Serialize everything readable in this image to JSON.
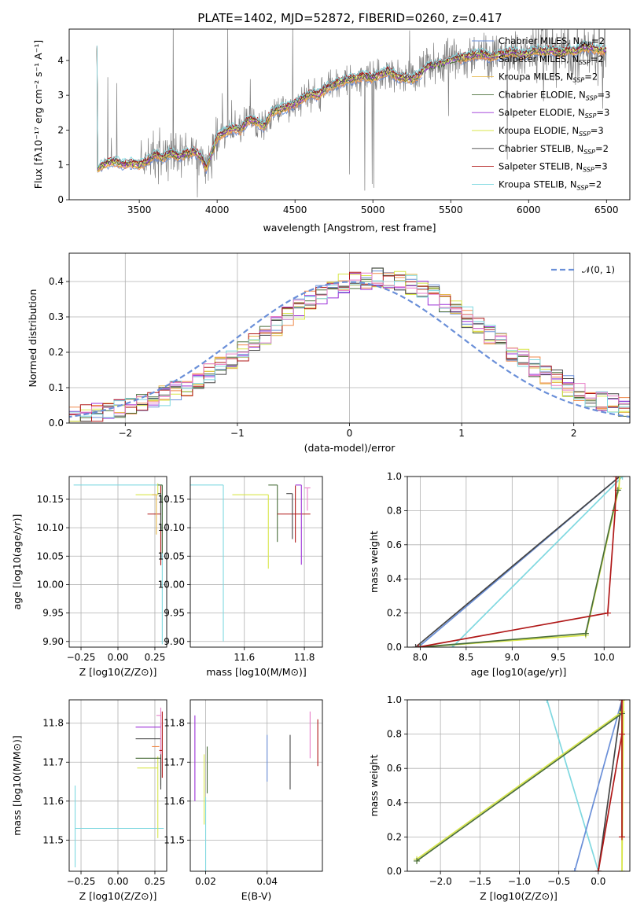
{
  "figure": {
    "title": "PLATE=1402, MJD=52872, FIBERID=0260, z=0.417"
  },
  "colors": {
    "data": "#808080",
    "Chabrier MILES": "#6a8fd8",
    "Salpeter MILES": "#f08a4b",
    "Kroupa MILES": "#e6b84c",
    "Chabrier ELODIE": "#4a6e3a",
    "Salpeter ELODIE": "#9b30d8",
    "Kroupa ELODIE": "#d8e64a",
    "Chabrier STELIB": "#444444",
    "Salpeter STELIB": "#b01818",
    "Kroupa STELIB": "#7fd8e0",
    "pink": "#e87fc8"
  },
  "chart_data": [
    {
      "id": "spectrum",
      "type": "line",
      "xlabel": "wavelength [Angstrom, rest frame]",
      "ylabel": "Flux [f_λ10^{-17} erg cm^{-2} s^{-1} A^{-1}]",
      "xlim": [
        3050,
        6650
      ],
      "ylim": [
        0,
        4.9
      ],
      "xticks": [
        "3500",
        "4000",
        "4500",
        "5000",
        "5500",
        "6000",
        "6500"
      ],
      "yticks": [
        "0",
        "1",
        "2",
        "3",
        "4"
      ],
      "grid": false,
      "legend_placement": "upper-right",
      "legend": [
        {
          "name": "Chabrier MILES",
          "sub": "SSP",
          "n": "2"
        },
        {
          "name": "Salpeter MILES",
          "sub": "SSP",
          "n": "2"
        },
        {
          "name": "Kroupa MILES",
          "sub": "SSP",
          "n": "2"
        },
        {
          "name": "Chabrier ELODIE",
          "sub": "SSP",
          "n": "3"
        },
        {
          "name": "Salpeter ELODIE",
          "sub": "SSP",
          "n": "3"
        },
        {
          "name": "Kroupa ELODIE",
          "sub": "SSP",
          "n": "3"
        },
        {
          "name": "Chabrier STELIB",
          "sub": "SSP",
          "n": "2"
        },
        {
          "name": "Salpeter STELIB",
          "sub": "SSP",
          "n": "3"
        },
        {
          "name": "Kroupa STELIB",
          "sub": "SSP",
          "n": "2"
        }
      ],
      "model_curve": {
        "x": [
          3230,
          3260,
          3300,
          3350,
          3400,
          3450,
          3500,
          3550,
          3600,
          3650,
          3700,
          3750,
          3800,
          3850,
          3900,
          3930,
          3970,
          4000,
          4050,
          4100,
          4150,
          4200,
          4250,
          4300,
          4350,
          4400,
          4450,
          4500,
          4550,
          4600,
          4650,
          4700,
          4750,
          4800,
          4850,
          4900,
          4950,
          5000,
          5050,
          5100,
          5150,
          5200,
          5250,
          5300,
          5350,
          5400,
          5450,
          5500,
          5550,
          5600,
          5650,
          5700,
          5750,
          5800,
          5850,
          5900,
          5950,
          6000,
          6050,
          6100,
          6150,
          6200,
          6250,
          6300,
          6350,
          6400,
          6450,
          6500
        ],
        "y": [
          0.85,
          1.0,
          1.05,
          1.1,
          1.0,
          1.05,
          1.0,
          1.1,
          1.3,
          1.2,
          1.35,
          1.25,
          1.3,
          1.4,
          1.2,
          0.9,
          1.4,
          1.8,
          1.95,
          2.05,
          2.0,
          2.3,
          2.25,
          2.1,
          2.5,
          2.6,
          2.65,
          2.75,
          2.9,
          3.05,
          3.0,
          3.2,
          3.3,
          3.4,
          3.45,
          3.5,
          3.55,
          3.5,
          3.6,
          3.7,
          3.55,
          3.5,
          3.45,
          3.6,
          3.8,
          3.85,
          3.9,
          4.0,
          4.05,
          4.1,
          4.15,
          4.2,
          4.1,
          4.15,
          4.2,
          4.25,
          4.15,
          4.2,
          4.3,
          4.25,
          4.3,
          4.2,
          4.3,
          4.25,
          4.4,
          4.35,
          4.3,
          4.3
        ]
      }
    },
    {
      "id": "residuals",
      "type": "line",
      "xlabel": "(data-model)/error",
      "ylabel": "Normed distribution",
      "xlim": [
        -2.5,
        2.5
      ],
      "ylim": [
        0,
        0.48
      ],
      "xticks": [
        "−2",
        "−1",
        "0",
        "1",
        "2"
      ],
      "yticks": [
        "0.0",
        "0.1",
        "0.2",
        "0.3",
        "0.4"
      ],
      "grid": true,
      "legend_placement": "upper-right",
      "legend": [
        {
          "name": "𝒩(0, 1)"
        }
      ],
      "normal": {
        "mean": 0,
        "sigma": 1
      }
    },
    {
      "id": "age-vs-Z",
      "type": "scatter",
      "xlabel": "Z [log10(Z/Z⊙)]",
      "ylabel": "age  [log10(age/yr)]",
      "xlim": [
        -0.33,
        0.33
      ],
      "ylim": [
        9.89,
        10.19
      ],
      "xticks": [
        "−0.25",
        "0.00",
        "0.25"
      ],
      "yticks": [
        "9.90",
        "9.95",
        "10.00",
        "10.05",
        "10.10",
        "10.15"
      ],
      "grid": true,
      "points": [
        {
          "series": "Kroupa STELIB",
          "x": 0.3,
          "y": 10.175,
          "xerr": [
            0.6,
            0.0
          ],
          "yerr": [
            0.28,
            0.0
          ]
        },
        {
          "series": "Kroupa ELODIE",
          "x": 0.27,
          "y": 10.158,
          "xerr": [
            0.15,
            0.0
          ],
          "yerr": [
            0.0,
            0.02
          ]
        },
        {
          "series": "Chabrier ELODIE",
          "x": 0.3,
          "y": 10.175,
          "xerr": [
            0.03,
            0.0
          ],
          "yerr": [
            0.12,
            0.0
          ]
        },
        {
          "series": "Salpeter STELIB",
          "x": 0.29,
          "y": 10.124,
          "xerr": [
            0.09,
            0.0
          ],
          "yerr": [
            0.09,
            0.05
          ]
        },
        {
          "series": "Kroupa MILES",
          "x": 0.26,
          "y": 10.158,
          "xerr": [
            0.03,
            0.0
          ],
          "yerr": [
            0.07,
            0.0
          ]
        },
        {
          "series": "Chabrier STELIB",
          "x": 0.29,
          "y": 10.16,
          "xerr": [
            0.02,
            0.0
          ],
          "yerr": [
            0.06,
            0.0
          ]
        }
      ]
    },
    {
      "id": "age-vs-mass",
      "type": "scatter",
      "xlabel": "mass [log10(M/M⊙)]",
      "ylabel": "",
      "xlim": [
        11.42,
        11.86
      ],
      "ylim": [
        9.89,
        10.19
      ],
      "xticks": [
        "11.6",
        "11.8"
      ],
      "yticks": [
        "9.90",
        "9.95",
        "10.00",
        "10.05",
        "10.10",
        "10.15"
      ],
      "grid": true,
      "points": [
        {
          "series": "Kroupa STELIB",
          "x": 11.53,
          "y": 10.175,
          "xerr": [
            0.11,
            0.0
          ],
          "yerr": [
            0.275,
            0.0
          ]
        },
        {
          "series": "Kroupa ELODIE",
          "x": 11.68,
          "y": 10.158,
          "xerr": [
            0.12,
            0.0
          ],
          "yerr": [
            0.13,
            0.0
          ]
        },
        {
          "series": "Chabrier ELODIE",
          "x": 11.71,
          "y": 10.175,
          "xerr": [
            0.03,
            0.0
          ],
          "yerr": [
            0.1,
            0.0
          ]
        },
        {
          "series": "Salpeter STELIB",
          "x": 11.77,
          "y": 10.124,
          "xerr": [
            0.06,
            0.05
          ],
          "yerr": [
            0.05,
            0.05
          ]
        },
        {
          "series": "Salpeter ELODIE",
          "x": 11.79,
          "y": 10.175,
          "xerr": [
            0.02,
            0.0
          ],
          "yerr": [
            0.14,
            0.0
          ]
        },
        {
          "series": "Chabrier STELIB",
          "x": 11.76,
          "y": 10.16,
          "xerr": [
            0.02,
            0.0
          ],
          "yerr": [
            0.08,
            0.0
          ]
        },
        {
          "series": "pink",
          "x": 11.81,
          "y": 10.17,
          "xerr": [
            0.01,
            0.01
          ],
          "yerr": [
            0.04,
            0.0
          ]
        }
      ]
    },
    {
      "id": "massweight-vs-age",
      "type": "line",
      "xlabel": "age  [log10(age/yr)]",
      "ylabel": "mass weight",
      "xlim": [
        7.86,
        10.28
      ],
      "ylim": [
        0,
        1.0
      ],
      "xticks": [
        "8.0",
        "8.5",
        "9.0",
        "9.5",
        "10.0"
      ],
      "yticks": [
        "0.0",
        "0.2",
        "0.4",
        "0.6",
        "0.8",
        "1.0"
      ],
      "grid": true,
      "series": [
        {
          "name": "Chabrier MILES",
          "x": [
            7.98,
            10.17
          ],
          "y": [
            0.0,
            1.0
          ]
        },
        {
          "name": "Chabrier STELIB",
          "x": [
            7.95,
            10.17
          ],
          "y": [
            0.0,
            1.0
          ]
        },
        {
          "name": "Kroupa STELIB",
          "x": [
            8.35,
            10.2
          ],
          "y": [
            0.0,
            1.0
          ]
        },
        {
          "name": "Kroupa ELODIE",
          "x": [
            8.0,
            9.8,
            10.16,
            10.17
          ],
          "y": [
            0.0,
            0.07,
            0.93,
            1.0
          ]
        },
        {
          "name": "Chabrier ELODIE",
          "x": [
            8.0,
            9.8,
            10.15
          ],
          "y": [
            0.0,
            0.08,
            0.92
          ]
        },
        {
          "name": "Salpeter STELIB",
          "x": [
            7.98,
            10.04,
            10.12,
            10.13
          ],
          "y": [
            0.0,
            0.2,
            0.8,
            1.0
          ]
        }
      ]
    },
    {
      "id": "mass-vs-Z",
      "type": "scatter",
      "xlabel": "Z [log10(Z/Z⊙)]",
      "ylabel": "mass [log10(M/M⊙)]",
      "xlim": [
        -0.33,
        0.33
      ],
      "ylim": [
        11.42,
        11.86
      ],
      "xticks": [
        "−0.25",
        "0.00",
        "0.25"
      ],
      "yticks": [
        "11.5",
        "11.6",
        "11.7",
        "11.8"
      ],
      "grid": true,
      "points": [
        {
          "series": "Kroupa STELIB",
          "x": -0.29,
          "y": 11.53,
          "xerr": [
            0.0,
            0.6
          ],
          "yerr": [
            0.1,
            0.11
          ]
        },
        {
          "series": "Kroupa ELODIE",
          "x": 0.27,
          "y": 11.685,
          "xerr": [
            0.14,
            0.0
          ],
          "yerr": [
            0.18,
            0.03
          ]
        },
        {
          "series": "Chabrier ELODIE",
          "x": 0.29,
          "y": 11.71,
          "xerr": [
            0.17,
            0.0
          ],
          "yerr": [
            0.07,
            0.0
          ]
        },
        {
          "series": "Salpeter ELODIE",
          "x": 0.29,
          "y": 11.79,
          "xerr": [
            0.17,
            0.0
          ],
          "yerr": [
            0.0,
            0.01
          ]
        },
        {
          "series": "Chabrier STELIB",
          "x": 0.29,
          "y": 11.76,
          "xerr": [
            0.17,
            0.0
          ],
          "yerr": [
            0.13,
            0.0
          ]
        },
        {
          "series": "Salpeter MILES",
          "x": 0.28,
          "y": 11.74,
          "xerr": [
            0.05,
            0.0
          ],
          "yerr": [
            0.0,
            0.0
          ]
        },
        {
          "series": "pink",
          "x": 0.29,
          "y": 11.82,
          "xerr": [
            0.03,
            0.0
          ],
          "yerr": [
            0.1,
            0.02
          ]
        },
        {
          "series": "Salpeter STELIB",
          "x": 0.3,
          "y": 11.73,
          "xerr": [
            0.02,
            0.0
          ],
          "yerr": [
            0.07,
            0.1
          ]
        }
      ]
    },
    {
      "id": "mass-vs-ebv",
      "type": "scatter",
      "xlabel": "E(B-V)",
      "ylabel": "",
      "xlim": [
        0.015,
        0.058
      ],
      "ylim": [
        11.42,
        11.86
      ],
      "xticks": [
        "0.02",
        "0.04"
      ],
      "yticks": [
        "11.5",
        "11.6",
        "11.7",
        "11.8"
      ],
      "grid": true,
      "points": [
        {
          "series": "Salpeter ELODIE",
          "x": 0.0165,
          "y": 11.72,
          "yerr": [
            0.12,
            0.1
          ]
        },
        {
          "series": "Kroupa STELIB",
          "x": 0.02,
          "y": 11.53,
          "yerr": [
            0.11,
            0.08
          ]
        },
        {
          "series": "Kroupa ELODIE",
          "x": 0.0195,
          "y": 11.67,
          "yerr": [
            0.13,
            0.05
          ]
        },
        {
          "series": "Chabrier ELODIE",
          "x": 0.0205,
          "y": 11.71,
          "yerr": [
            0.09,
            0.03
          ]
        },
        {
          "series": "Chabrier MILES",
          "x": 0.04,
          "y": 11.71,
          "yerr": [
            0.06,
            0.06
          ]
        },
        {
          "series": "Chabrier STELIB",
          "x": 0.0475,
          "y": 11.7,
          "yerr": [
            0.07,
            0.07
          ]
        },
        {
          "series": "pink",
          "x": 0.054,
          "y": 11.76,
          "yerr": [
            0.05,
            0.07
          ]
        },
        {
          "series": "Salpeter STELIB",
          "x": 0.0565,
          "y": 11.75,
          "yerr": [
            0.06,
            0.06
          ]
        }
      ]
    },
    {
      "id": "massweight-vs-Z",
      "type": "line",
      "xlabel": "Z [log10(Z/Z⊙)]",
      "ylabel": "mass weight",
      "xlim": [
        -2.42,
        0.4
      ],
      "ylim": [
        0,
        1.0
      ],
      "xticks": [
        "−2.0",
        "−1.5",
        "−1.0",
        "−0.5",
        "0.0"
      ],
      "yticks": [
        "0.0",
        "0.2",
        "0.4",
        "0.6",
        "0.8",
        "1.0"
      ],
      "grid": true,
      "series": [
        {
          "name": "Kroupa STELIB",
          "x": [
            -0.65,
            0.0
          ],
          "y": [
            1.0,
            0.0
          ]
        },
        {
          "name": "Chabrier MILES",
          "x": [
            -0.3,
            0.3
          ],
          "y": [
            0.0,
            1.0
          ]
        },
        {
          "name": "Chabrier STELIB",
          "x": [
            0.0,
            0.3
          ],
          "y": [
            0.0,
            1.0
          ]
        },
        {
          "name": "Kroupa ELODIE",
          "x": [
            -2.3,
            0.3,
            0.3,
            0.32
          ],
          "y": [
            0.07,
            0.93,
            0.0,
            1.0
          ]
        },
        {
          "name": "Chabrier ELODIE",
          "x": [
            -2.3,
            0.3
          ],
          "y": [
            0.06,
            0.92
          ]
        },
        {
          "name": "Salpeter STELIB",
          "x": [
            0.0,
            0.3,
            0.3,
            0.3
          ],
          "y": [
            0.0,
            0.8,
            0.2,
            1.0
          ]
        }
      ]
    }
  ]
}
